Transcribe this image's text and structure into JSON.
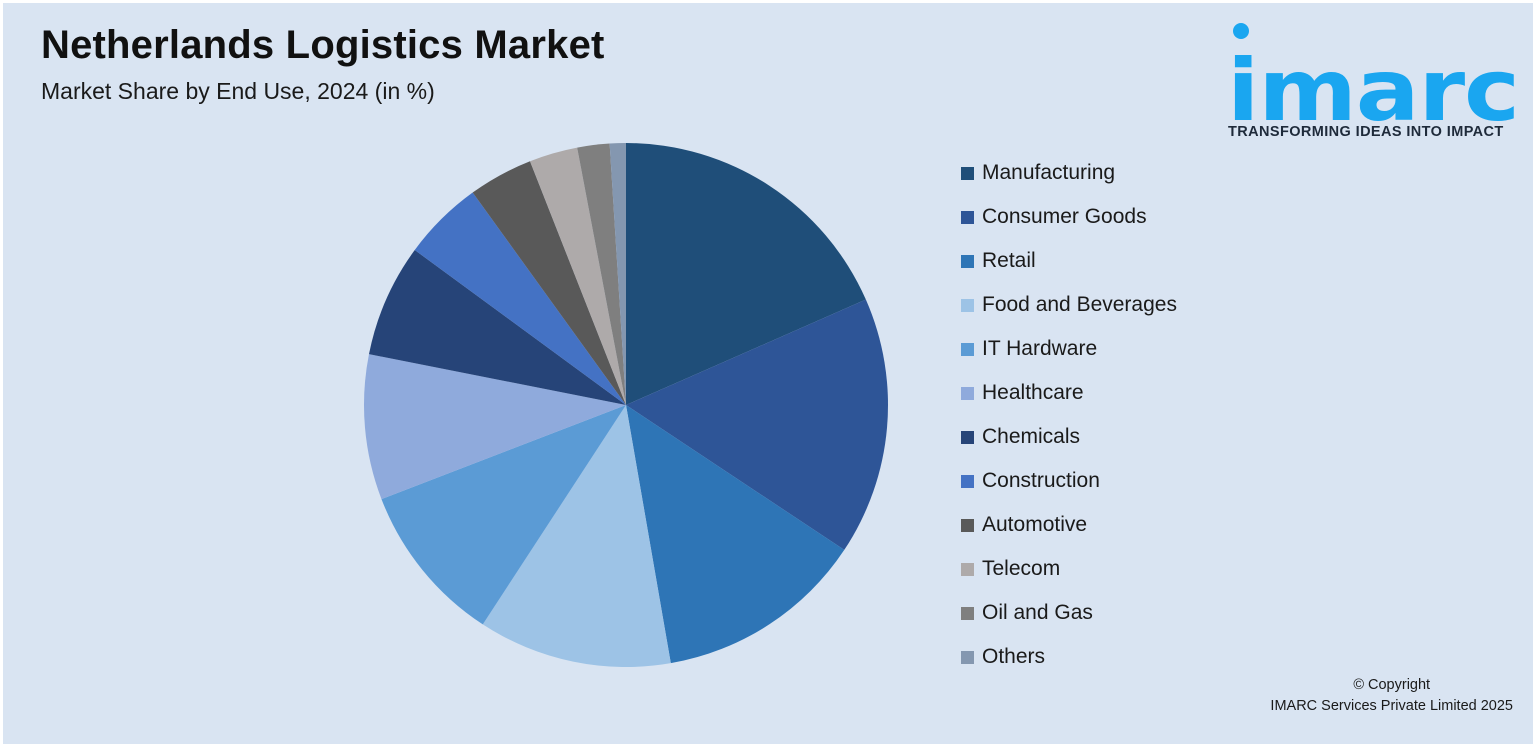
{
  "header": {
    "title": "Netherlands Logistics Market",
    "subtitle": "Market Share by End Use, 2024 (in %)"
  },
  "logo": {
    "wordmark": "imarc",
    "tagline": "TRANSFORMING IDEAS INTO IMPACT",
    "color": "#1aa6f0"
  },
  "footer": {
    "line1": "© Copyright",
    "line2": "IMARC Services Private Limited 2025"
  },
  "chart_data": {
    "type": "pie",
    "title": "Netherlands Logistics Market",
    "subtitle": "Market Share by End Use, 2024 (in %)",
    "legend_position": "right",
    "data_labels": false,
    "categories": [
      "Manufacturing",
      "Consumer Goods",
      "Retail",
      "Food and Beverages",
      "IT Hardware",
      "Healthcare",
      "Chemicals",
      "Construction",
      "Automotive",
      "Telecom",
      "Oil and Gas",
      "Others"
    ],
    "values": [
      18.5,
      16.0,
      13.0,
      12.0,
      10.0,
      9.0,
      7.0,
      5.0,
      4.0,
      3.0,
      2.0,
      1.0
    ],
    "colors": [
      "#1f4e79",
      "#2e5597",
      "#2e75b6",
      "#9dc3e6",
      "#5b9bd5",
      "#8faadc",
      "#264478",
      "#4472c4",
      "#595959",
      "#aeaaaa",
      "#7f7f7f",
      "#8497b0"
    ]
  }
}
